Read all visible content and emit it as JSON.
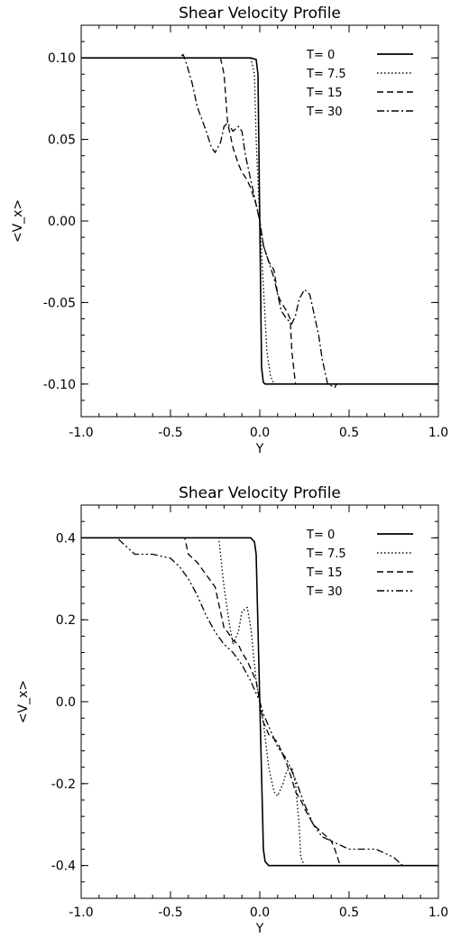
{
  "chart_data": [
    {
      "type": "line",
      "title": "Shear Velocity Profile",
      "xlabel": "Y",
      "ylabel": "<V_x>",
      "xlim": [
        -1.0,
        1.0
      ],
      "ylim": [
        -0.12,
        0.12
      ],
      "xticks": [
        "-1.0",
        "-0.5",
        "0.0",
        "0.5",
        "1.0"
      ],
      "yticks": [
        "0.10",
        "0.05",
        "0.00",
        "-0.05",
        "-0.10"
      ],
      "ytick_values": [
        0.1,
        0.05,
        0.0,
        -0.05,
        -0.1
      ],
      "legend_position": "top-right",
      "series": [
        {
          "name": "T= 0",
          "dash": "solid",
          "x": [
            -1.0,
            -0.05,
            -0.02,
            -0.01,
            0.0,
            0.01,
            0.02,
            0.03,
            0.05,
            1.0
          ],
          "y": [
            0.1,
            0.1,
            0.099,
            0.09,
            0.0,
            -0.09,
            -0.099,
            -0.1,
            -0.1,
            -0.1
          ]
        },
        {
          "name": "T= 7.5",
          "dash": "dotted",
          "x": [
            -1.0,
            -0.05,
            -0.03,
            -0.02,
            0.0,
            0.02,
            0.04,
            0.06,
            0.08,
            1.0
          ],
          "y": [
            0.1,
            0.1,
            0.09,
            0.05,
            0.0,
            -0.04,
            -0.08,
            -0.095,
            -0.1,
            -0.1
          ]
        },
        {
          "name": "T= 15",
          "dash": "dashed",
          "x": [
            -1.0,
            -0.22,
            -0.2,
            -0.18,
            -0.15,
            -0.12,
            -0.1,
            -0.07,
            -0.05,
            -0.02,
            0.0,
            0.02,
            0.05,
            0.08,
            0.1,
            0.12,
            0.15,
            0.17,
            0.18,
            0.2,
            0.22,
            1.0
          ],
          "y": [
            0.1,
            0.1,
            0.09,
            0.06,
            0.045,
            0.035,
            0.03,
            0.025,
            0.02,
            0.01,
            0.0,
            -0.015,
            -0.025,
            -0.03,
            -0.045,
            -0.05,
            -0.055,
            -0.06,
            -0.08,
            -0.1,
            -0.1,
            -0.1
          ]
        },
        {
          "name": "T= 30",
          "dash": "dashdot",
          "x": [
            -1.0,
            -0.45,
            -0.43,
            -0.42,
            -0.38,
            -0.35,
            -0.3,
            -0.27,
            -0.25,
            -0.22,
            -0.2,
            -0.18,
            -0.15,
            -0.12,
            -0.1,
            -0.08,
            -0.05,
            -0.02,
            0.0,
            0.02,
            0.05,
            0.08,
            0.1,
            0.12,
            0.15,
            0.18,
            0.2,
            0.22,
            0.25,
            0.28,
            0.3,
            0.33,
            0.35,
            0.37,
            0.38,
            0.4,
            0.42,
            0.43,
            1.0
          ],
          "y": [
            0.1,
            0.1,
            0.102,
            0.1,
            0.085,
            0.07,
            0.055,
            0.045,
            0.042,
            0.048,
            0.058,
            0.06,
            0.055,
            0.058,
            0.055,
            0.04,
            0.025,
            0.01,
            0.0,
            -0.015,
            -0.025,
            -0.035,
            -0.045,
            -0.055,
            -0.06,
            -0.063,
            -0.058,
            -0.048,
            -0.042,
            -0.045,
            -0.055,
            -0.07,
            -0.085,
            -0.095,
            -0.1,
            -0.101,
            -0.102,
            -0.1,
            -0.1
          ]
        }
      ]
    },
    {
      "type": "line",
      "title": "Shear Velocity Profile",
      "xlabel": "Y",
      "ylabel": "<V_x>",
      "xlim": [
        -1.0,
        1.0
      ],
      "ylim": [
        -0.48,
        0.48
      ],
      "xticks": [
        "-1.0",
        "-0.5",
        "0.0",
        "0.5",
        "1.0"
      ],
      "yticks": [
        "0.4",
        "0.2",
        "0.0",
        "-0.2",
        "-0.4"
      ],
      "ytick_values": [
        0.4,
        0.2,
        0.0,
        -0.2,
        -0.4
      ],
      "legend_position": "top-right",
      "series": [
        {
          "name": "T= 0",
          "dash": "solid",
          "x": [
            -1.0,
            -0.05,
            -0.03,
            -0.02,
            0.0,
            0.02,
            0.03,
            0.05,
            1.0
          ],
          "y": [
            0.4,
            0.4,
            0.39,
            0.36,
            0.0,
            -0.36,
            -0.39,
            -0.4,
            -0.4
          ]
        },
        {
          "name": "T= 7.5",
          "dash": "dotted",
          "x": [
            -1.0,
            -0.23,
            -0.22,
            -0.2,
            -0.17,
            -0.15,
            -0.12,
            -0.1,
            -0.07,
            -0.05,
            -0.02,
            0.0,
            0.02,
            0.05,
            0.08,
            0.1,
            0.13,
            0.15,
            0.18,
            0.2,
            0.22,
            0.23,
            0.25,
            1.0
          ],
          "y": [
            0.4,
            0.4,
            0.36,
            0.28,
            0.19,
            0.14,
            0.17,
            0.22,
            0.23,
            0.18,
            0.05,
            0.0,
            -0.05,
            -0.16,
            -0.22,
            -0.23,
            -0.2,
            -0.17,
            -0.16,
            -0.2,
            -0.3,
            -0.38,
            -0.4,
            -0.4
          ]
        },
        {
          "name": "T= 15",
          "dash": "dashed",
          "x": [
            -1.0,
            -0.42,
            -0.4,
            -0.35,
            -0.3,
            -0.25,
            -0.22,
            -0.2,
            -0.18,
            -0.15,
            -0.12,
            -0.1,
            -0.07,
            -0.05,
            -0.02,
            0.0,
            0.02,
            0.05,
            0.08,
            0.1,
            0.13,
            0.15,
            0.18,
            0.2,
            0.23,
            0.25,
            0.3,
            0.35,
            0.4,
            0.42,
            0.45,
            1.0
          ],
          "y": [
            0.4,
            0.4,
            0.36,
            0.34,
            0.31,
            0.28,
            0.22,
            0.18,
            0.17,
            0.15,
            0.14,
            0.12,
            0.1,
            0.08,
            0.05,
            0.0,
            -0.05,
            -0.08,
            -0.09,
            -0.1,
            -0.13,
            -0.15,
            -0.19,
            -0.22,
            -0.24,
            -0.26,
            -0.3,
            -0.32,
            -0.34,
            -0.36,
            -0.4,
            -0.4
          ]
        },
        {
          "name": "T= 30",
          "dash": "dashdotdot",
          "x": [
            -1.0,
            -0.8,
            -0.75,
            -0.7,
            -0.6,
            -0.5,
            -0.45,
            -0.4,
            -0.35,
            -0.3,
            -0.25,
            -0.2,
            -0.15,
            -0.1,
            -0.05,
            -0.02,
            0.0,
            0.02,
            0.05,
            0.08,
            0.1,
            0.15,
            0.2,
            0.25,
            0.3,
            0.35,
            0.4,
            0.45,
            0.5,
            0.55,
            0.6,
            0.65,
            0.7,
            0.75,
            0.8,
            1.0
          ],
          "y": [
            0.4,
            0.4,
            0.38,
            0.36,
            0.36,
            0.35,
            0.33,
            0.3,
            0.26,
            0.21,
            0.17,
            0.14,
            0.12,
            0.09,
            0.05,
            0.02,
            0.0,
            -0.03,
            -0.06,
            -0.09,
            -0.11,
            -0.14,
            -0.19,
            -0.25,
            -0.3,
            -0.33,
            -0.34,
            -0.35,
            -0.36,
            -0.36,
            -0.36,
            -0.36,
            -0.37,
            -0.38,
            -0.4,
            -0.4
          ]
        }
      ]
    }
  ]
}
